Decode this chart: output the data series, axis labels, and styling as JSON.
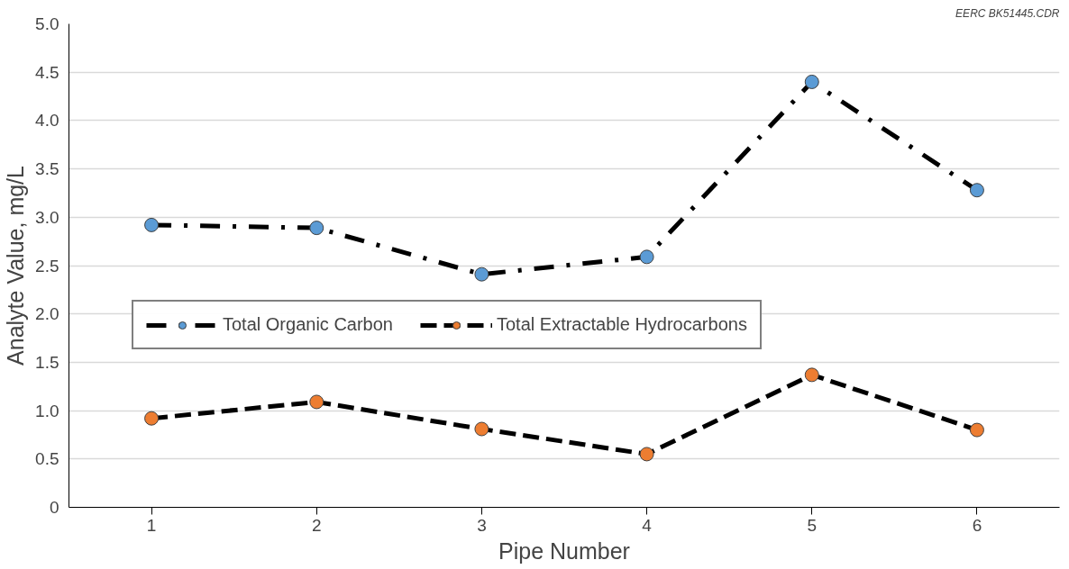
{
  "chart_data": {
    "type": "line",
    "xlabel": "Pipe Number",
    "ylabel": "Analyte Value, mg/L",
    "annotations": [
      "EERC BK51445.CDR"
    ],
    "x": [
      1,
      2,
      3,
      4,
      5,
      6
    ],
    "series": [
      {
        "name": "Total Organic Carbon",
        "color": "#5b9bd5",
        "line_style": "dashdot",
        "values": [
          2.92,
          2.89,
          2.41,
          2.59,
          4.4,
          3.28
        ]
      },
      {
        "name": "Total Extractable Hydrocarbons",
        "color": "#ed7d31",
        "line_style": "dashed",
        "values": [
          0.92,
          1.09,
          0.81,
          0.55,
          1.37,
          0.8
        ]
      }
    ],
    "xlim": [
      0.5,
      6.5
    ],
    "xticks": [
      1,
      2,
      3,
      4,
      5,
      6
    ],
    "ylim": [
      0,
      5
    ],
    "yticks": [
      {
        "value": 0,
        "label": "0"
      },
      {
        "value": 0.5,
        "label": "0.5"
      },
      {
        "value": 1,
        "label": "1.0"
      },
      {
        "value": 1.5,
        "label": "1.5"
      },
      {
        "value": 2,
        "label": "2.0"
      },
      {
        "value": 2.5,
        "label": "2.5"
      },
      {
        "value": 3,
        "label": "3.0"
      },
      {
        "value": 3.5,
        "label": "3.5"
      },
      {
        "value": 4,
        "label": "4.0"
      },
      {
        "value": 4.5,
        "label": "4.5"
      },
      {
        "value": 5,
        "label": "5.0"
      }
    ],
    "grid": "y",
    "legend": "center",
    "marker": "circle"
  }
}
